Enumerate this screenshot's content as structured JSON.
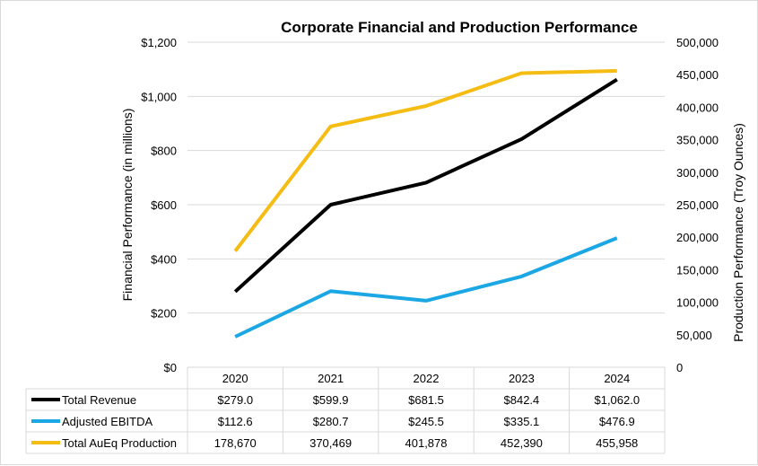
{
  "chart_data": {
    "type": "line",
    "title": "Corporate Financial and Production Performance",
    "ylabel_left": "Financial Performance (in millions)",
    "ylabel_right": "Production Performance (Troy Ounces)",
    "categories": [
      "2020",
      "2021",
      "2022",
      "2023",
      "2024"
    ],
    "ylim_left": [
      0,
      1200
    ],
    "ylim_right": [
      0,
      500000
    ],
    "yticks_left": [
      "$0",
      "$200",
      "$400",
      "$600",
      "$800",
      "$1,000",
      "$1,200"
    ],
    "yticks_right": [
      "0",
      "50,000",
      "100,000",
      "150,000",
      "200,000",
      "250,000",
      "300,000",
      "350,000",
      "400,000",
      "450,000",
      "500,000"
    ],
    "series": [
      {
        "name": "Total Revenue",
        "axis": "left",
        "color": "#000000",
        "values": [
          279.0,
          599.9,
          681.5,
          842.4,
          1062.0
        ],
        "labels": [
          "$279.0",
          "$599.9",
          "$681.5",
          "$842.4",
          "$1,062.0"
        ]
      },
      {
        "name": "Adjusted EBITDA",
        "axis": "left",
        "color": "#1aa7e4",
        "values": [
          112.6,
          280.7,
          245.5,
          335.1,
          476.9
        ],
        "labels": [
          "$112.6",
          "$280.7",
          "$245.5",
          "$335.1",
          "$476.9"
        ]
      },
      {
        "name": "Total AuEq Production",
        "axis": "right",
        "color": "#f5bd14",
        "values": [
          178670,
          370469,
          401878,
          452390,
          455958
        ],
        "labels": [
          "178,670",
          "370,469",
          "401,878",
          "452,390",
          "455,958"
        ]
      }
    ]
  }
}
